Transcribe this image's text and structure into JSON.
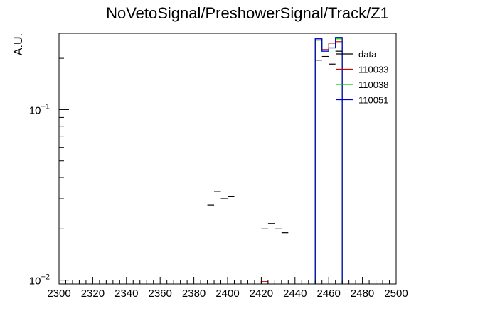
{
  "chart_data": {
    "type": "line",
    "title": "NoVetoSignal/PreshowerSignal/Track/Z1",
    "xlabel": "",
    "ylabel": "A.U.",
    "xlim": [
      2300,
      2500
    ],
    "ylim": [
      0.0095,
      0.28
    ],
    "yscale": "log",
    "grid": false,
    "legend_position": "top-right",
    "xticks": [
      2300,
      2320,
      2340,
      2360,
      2380,
      2400,
      2420,
      2440,
      2460,
      2480,
      2500
    ],
    "yticks": [
      {
        "value": 0.01,
        "base": "10",
        "exp": "−2"
      },
      {
        "value": 0.1,
        "base": "10",
        "exp": "−1"
      }
    ],
    "series": [
      {
        "name": "data",
        "kind": "points",
        "color": "#000000",
        "binwidth": 4,
        "points": [
          {
            "x": 2390,
            "y": 0.0275
          },
          {
            "x": 2394,
            "y": 0.033
          },
          {
            "x": 2398,
            "y": 0.03
          },
          {
            "x": 2402,
            "y": 0.031
          },
          {
            "x": 2422,
            "y": 0.02
          },
          {
            "x": 2426,
            "y": 0.0215
          },
          {
            "x": 2430,
            "y": 0.02
          },
          {
            "x": 2434,
            "y": 0.019
          },
          {
            "x": 2454,
            "y": 0.195
          },
          {
            "x": 2458,
            "y": 0.205
          },
          {
            "x": 2462,
            "y": 0.185
          },
          {
            "x": 2466,
            "y": 0.22
          }
        ]
      },
      {
        "name": "110033",
        "kind": "hist",
        "color": "#cc0000",
        "bins": [
          {
            "lo": 2420,
            "hi": 2424,
            "y": 0.0098
          },
          {
            "lo": 2452,
            "hi": 2456,
            "y": 0.26
          },
          {
            "lo": 2456,
            "hi": 2460,
            "y": 0.225
          },
          {
            "lo": 2460,
            "hi": 2464,
            "y": 0.245
          },
          {
            "lo": 2464,
            "hi": 2468,
            "y": 0.25
          }
        ]
      },
      {
        "name": "110038",
        "kind": "hist",
        "color": "#00cc00",
        "bins": [
          {
            "lo": 2452,
            "hi": 2456,
            "y": 0.255
          },
          {
            "lo": 2456,
            "hi": 2460,
            "y": 0.22
          },
          {
            "lo": 2460,
            "hi": 2464,
            "y": 0.23
          },
          {
            "lo": 2464,
            "hi": 2468,
            "y": 0.26
          }
        ]
      },
      {
        "name": "110051",
        "kind": "hist",
        "color": "#0000cc",
        "bins": [
          {
            "lo": 2452,
            "hi": 2456,
            "y": 0.26
          },
          {
            "lo": 2456,
            "hi": 2460,
            "y": 0.22
          },
          {
            "lo": 2460,
            "hi": 2464,
            "y": 0.23
          },
          {
            "lo": 2464,
            "hi": 2468,
            "y": 0.265
          }
        ]
      }
    ]
  }
}
